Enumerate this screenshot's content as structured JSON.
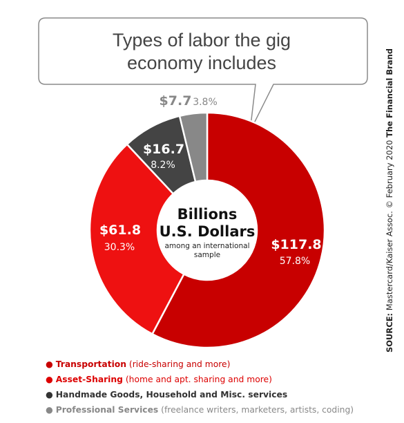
{
  "callout": {
    "line1": "Types of labor the gig",
    "line2": "economy includes"
  },
  "center_label": {
    "line1": "Billions",
    "line2": "U.S. Dollars",
    "sub1": "among an international",
    "sub2": "sample"
  },
  "source": {
    "prefix": "SOURCE:",
    "body": " Mastercard/Kaiser Assoc. © February 2020 ",
    "brand": "The Financial Brand"
  },
  "colors": {
    "transportation": "#c80000",
    "asset_sharing": "#ee1111",
    "handmade": "#444444",
    "professional": "#888888",
    "transportation_text": "#c80000",
    "asset_sharing_text": "#dd0000",
    "handmade_text": "#333333",
    "professional_text": "#888888"
  },
  "chart_data": {
    "type": "pie",
    "donut": true,
    "unit": "Billions U.S. Dollars",
    "slices": [
      {
        "key": "transportation",
        "category": "Transportation",
        "value": 117.8,
        "value_label": "$117.8",
        "percent_label": "57.8%"
      },
      {
        "key": "asset_sharing",
        "category": "Asset-Sharing",
        "value": 61.8,
        "value_label": "$61.8",
        "percent_label": "30.3%"
      },
      {
        "key": "handmade",
        "category": "Handmade Goods, Household and Misc. services",
        "value": 16.7,
        "value_label": "$16.7",
        "percent_label": "8.2%"
      },
      {
        "key": "professional",
        "category": "Professional Services",
        "value": 7.7,
        "value_label": "$7.7",
        "percent_label": "3.8%"
      }
    ]
  },
  "legend": {
    "items": [
      {
        "bullet": "●",
        "name": "Transportation",
        "detail": " (ride-sharing and more)"
      },
      {
        "bullet": "●",
        "name": "Asset-Sharing",
        "detail": " (home and apt. sharing and more)"
      },
      {
        "bullet": "●",
        "name": "Handmade Goods, Household and Misc. services",
        "detail": ""
      },
      {
        "bullet": "●",
        "name": "Professional Services",
        "detail": " (freelance writers, marketers, artists, coding)"
      }
    ]
  }
}
